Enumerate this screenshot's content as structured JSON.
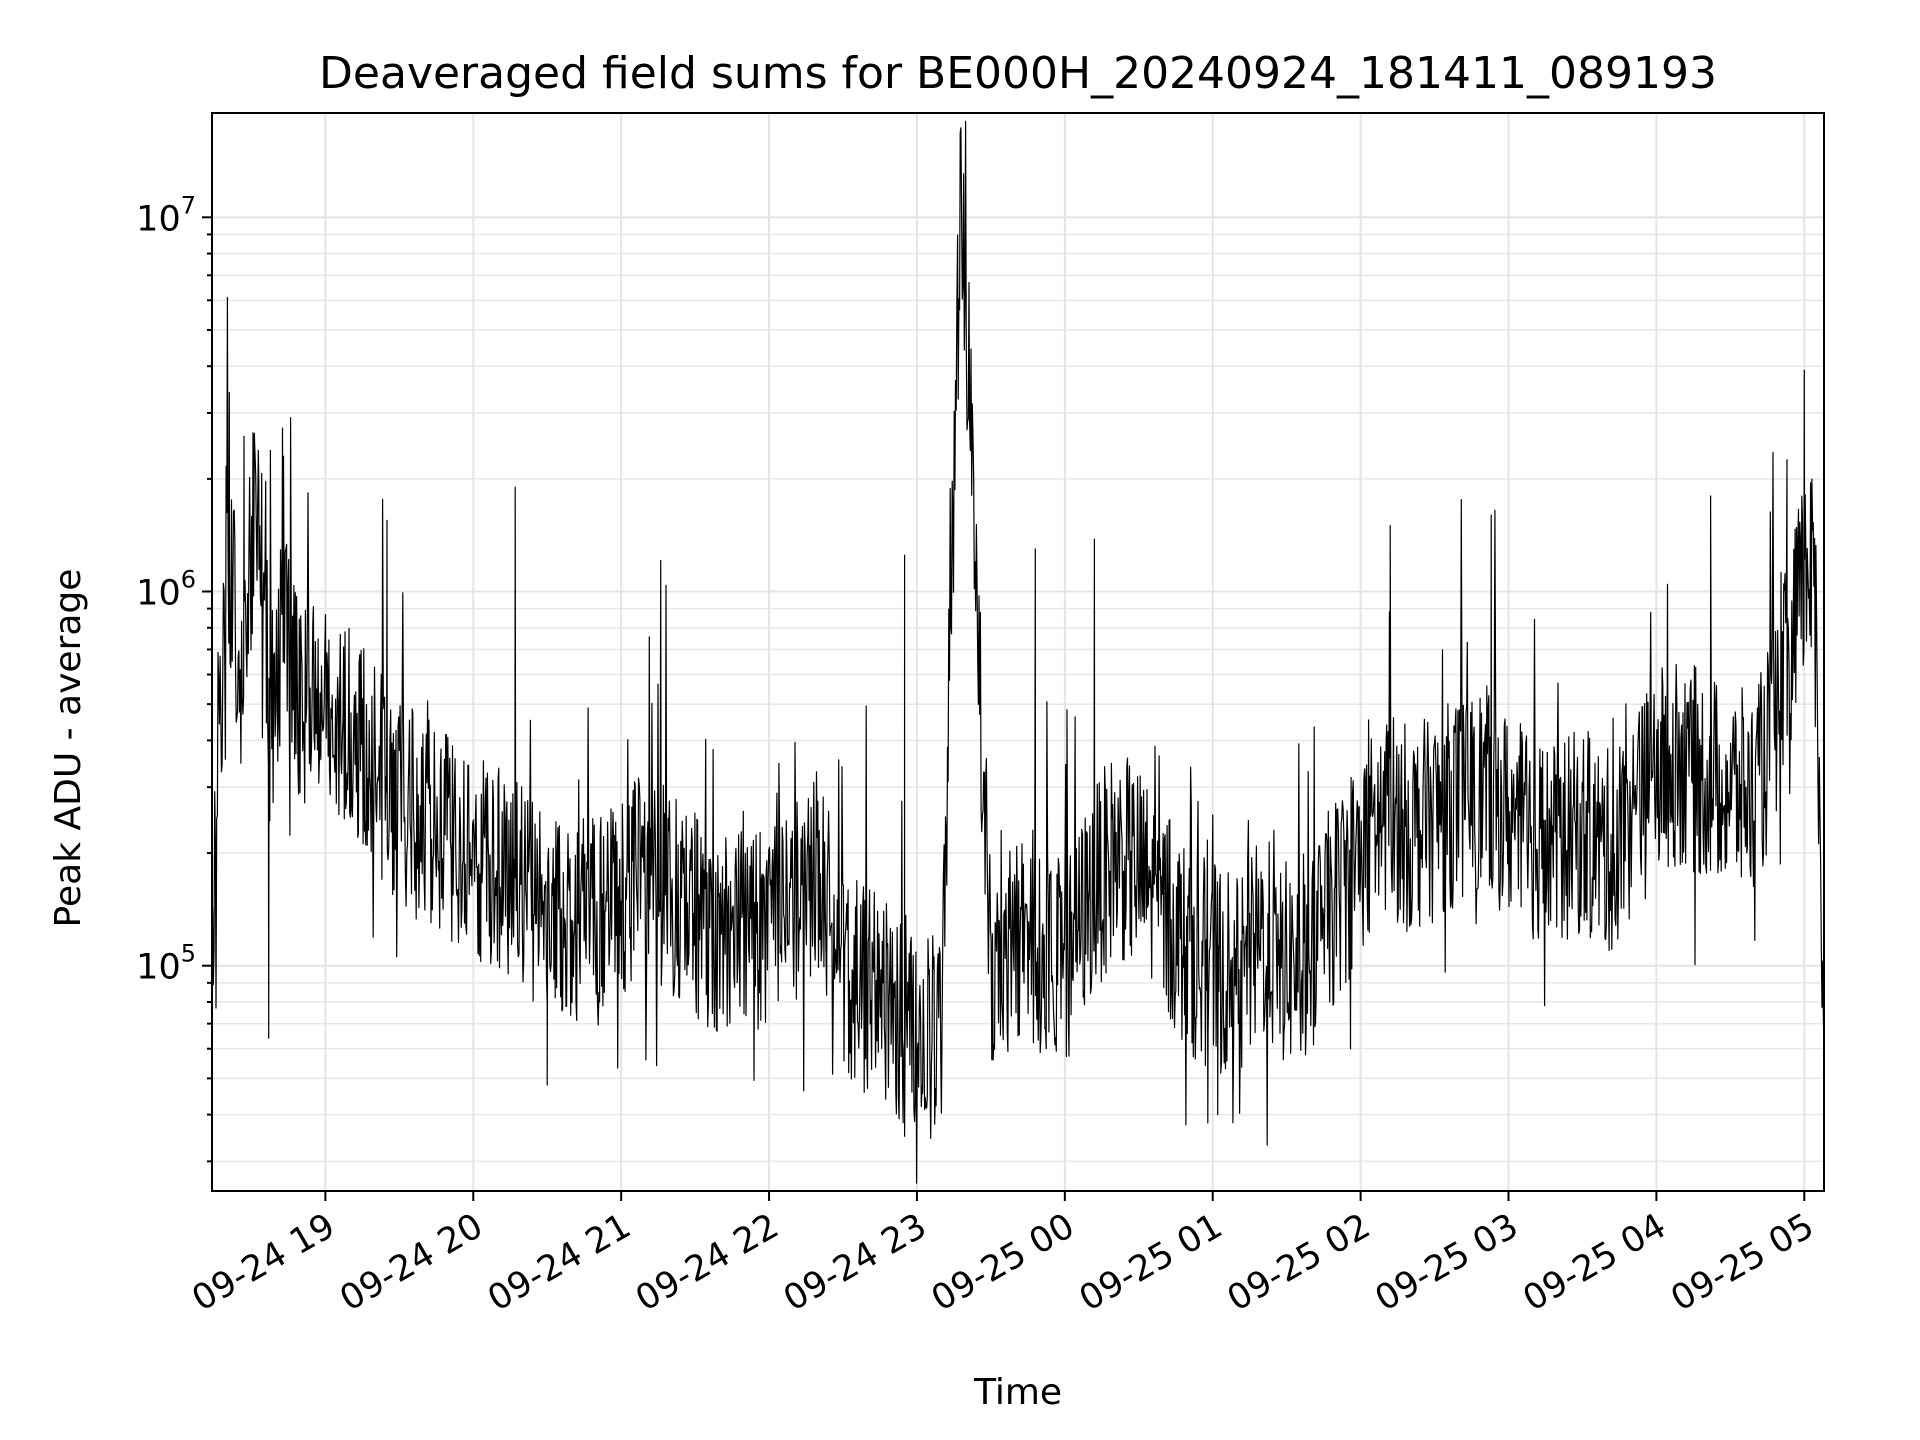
{
  "chart_data": {
    "type": "line",
    "title": "Deaveraged field sums for BE000H_20240924_181411_089193",
    "xlabel": "Time",
    "ylabel": "Peak ADU - average",
    "yscale": "log",
    "xlim": [
      "2024-09-24 18:14",
      "2024-09-25 05:08"
    ],
    "ylim": [
      25000,
      19000000
    ],
    "grid": true,
    "x_ticks": [
      "09-24 19",
      "09-24 20",
      "09-24 21",
      "09-24 22",
      "09-24 23",
      "09-25 00",
      "09-25 01",
      "09-25 02",
      "09-25 03",
      "09-25 04",
      "09-25 05"
    ],
    "y_ticks": [
      {
        "value": 100000,
        "base": "10",
        "exp": "5"
      },
      {
        "value": 1000000,
        "base": "10",
        "exp": "6"
      },
      {
        "value": 10000000,
        "base": "10",
        "exp": "7"
      }
    ],
    "series": [
      {
        "color": "#000000",
        "x": [
          "2024-09-24 18:14",
          "2024-09-24 18:20",
          "2024-09-24 18:26",
          "2024-09-24 18:32",
          "2024-09-24 18:38",
          "2024-09-24 18:44",
          "2024-09-24 18:50",
          "2024-09-24 19:00",
          "2024-09-24 19:10",
          "2024-09-24 19:20",
          "2024-09-24 19:30",
          "2024-09-24 19:40",
          "2024-09-24 19:50",
          "2024-09-24 20:00",
          "2024-09-24 20:10",
          "2024-09-24 20:20",
          "2024-09-24 20:30",
          "2024-09-24 20:40",
          "2024-09-24 20:50",
          "2024-09-24 21:00",
          "2024-09-24 21:10",
          "2024-09-24 21:20",
          "2024-09-24 21:30",
          "2024-09-24 21:40",
          "2024-09-24 21:50",
          "2024-09-24 22:00",
          "2024-09-24 22:10",
          "2024-09-24 22:20",
          "2024-09-24 22:30",
          "2024-09-24 22:40",
          "2024-09-24 22:50",
          "2024-09-24 23:00",
          "2024-09-24 23:10",
          "2024-09-24 23:18",
          "2024-09-24 23:30",
          "2024-09-24 23:40",
          "2024-09-24 23:50",
          "2024-09-25 00:00",
          "2024-09-25 00:10",
          "2024-09-25 00:20",
          "2024-09-25 00:30",
          "2024-09-25 00:40",
          "2024-09-25 00:50",
          "2024-09-25 01:00",
          "2024-09-25 01:10",
          "2024-09-25 01:20",
          "2024-09-25 01:30",
          "2024-09-25 01:40",
          "2024-09-25 01:50",
          "2024-09-25 02:00",
          "2024-09-25 02:10",
          "2024-09-25 02:20",
          "2024-09-25 02:30",
          "2024-09-25 02:40",
          "2024-09-25 02:50",
          "2024-09-25 03:00",
          "2024-09-25 03:10",
          "2024-09-25 03:20",
          "2024-09-25 03:30",
          "2024-09-25 03:40",
          "2024-09-25 03:50",
          "2024-09-25 04:00",
          "2024-09-25 04:10",
          "2024-09-25 04:20",
          "2024-09-25 04:30",
          "2024-09-25 04:40",
          "2024-09-25 04:50",
          "2024-09-25 05:00",
          "2024-09-25 05:04",
          "2024-09-25 05:08"
        ],
        "values": [
          100000,
          1400000,
          600000,
          1800000,
          450000,
          900000,
          500000,
          480000,
          420000,
          350000,
          260000,
          250000,
          220000,
          200000,
          180000,
          160000,
          140000,
          130000,
          130000,
          150000,
          180000,
          160000,
          140000,
          120000,
          140000,
          120000,
          150000,
          180000,
          100000,
          85000,
          80000,
          60000,
          70000,
          13300000,
          90000,
          120000,
          110000,
          100000,
          150000,
          200000,
          180000,
          140000,
          110000,
          100000,
          90000,
          120000,
          100000,
          110000,
          150000,
          200000,
          260000,
          230000,
          250000,
          280000,
          300000,
          250000,
          220000,
          210000,
          230000,
          200000,
          240000,
          330000,
          350000,
          320000,
          300000,
          280000,
          500000,
          1100000,
          1100000,
          70000
        ],
        "noise_amplitude_decades": 0.28,
        "spikes": [
          {
            "x": "2024-09-24 18:21",
            "value": 3400000
          },
          {
            "x": "2024-09-24 18:27",
            "value": 2600000
          },
          {
            "x": "2024-09-24 18:33",
            "value": 2000000
          },
          {
            "x": "2024-09-24 18:43",
            "value": 2300000
          },
          {
            "x": "2024-09-24 19:25",
            "value": 1550000
          },
          {
            "x": "2024-09-24 20:17",
            "value": 1900000
          },
          {
            "x": "2024-09-24 22:55",
            "value": 1250000
          },
          {
            "x": "2024-09-24 23:48",
            "value": 1300000
          },
          {
            "x": "2024-09-25 00:12",
            "value": 1380000
          },
          {
            "x": "2024-09-25 02:12",
            "value": 1500000
          },
          {
            "x": "2024-09-25 02:53",
            "value": 1600000
          },
          {
            "x": "2024-09-25 04:22",
            "value": 1800000
          },
          {
            "x": "2024-09-25 04:53",
            "value": 2250000
          },
          {
            "x": "2024-09-25 05:00",
            "value": 3900000
          }
        ],
        "dips": [
          {
            "x": "2024-09-24 18:37",
            "value": 64000
          },
          {
            "x": "2024-09-24 20:30",
            "value": 48000
          },
          {
            "x": "2024-09-24 22:55",
            "value": 35000
          },
          {
            "x": "2024-09-24 23:00",
            "value": 38000
          },
          {
            "x": "2024-09-25 00:58",
            "value": 38000
          },
          {
            "x": "2024-09-25 01:02",
            "value": 40000
          }
        ]
      }
    ]
  }
}
